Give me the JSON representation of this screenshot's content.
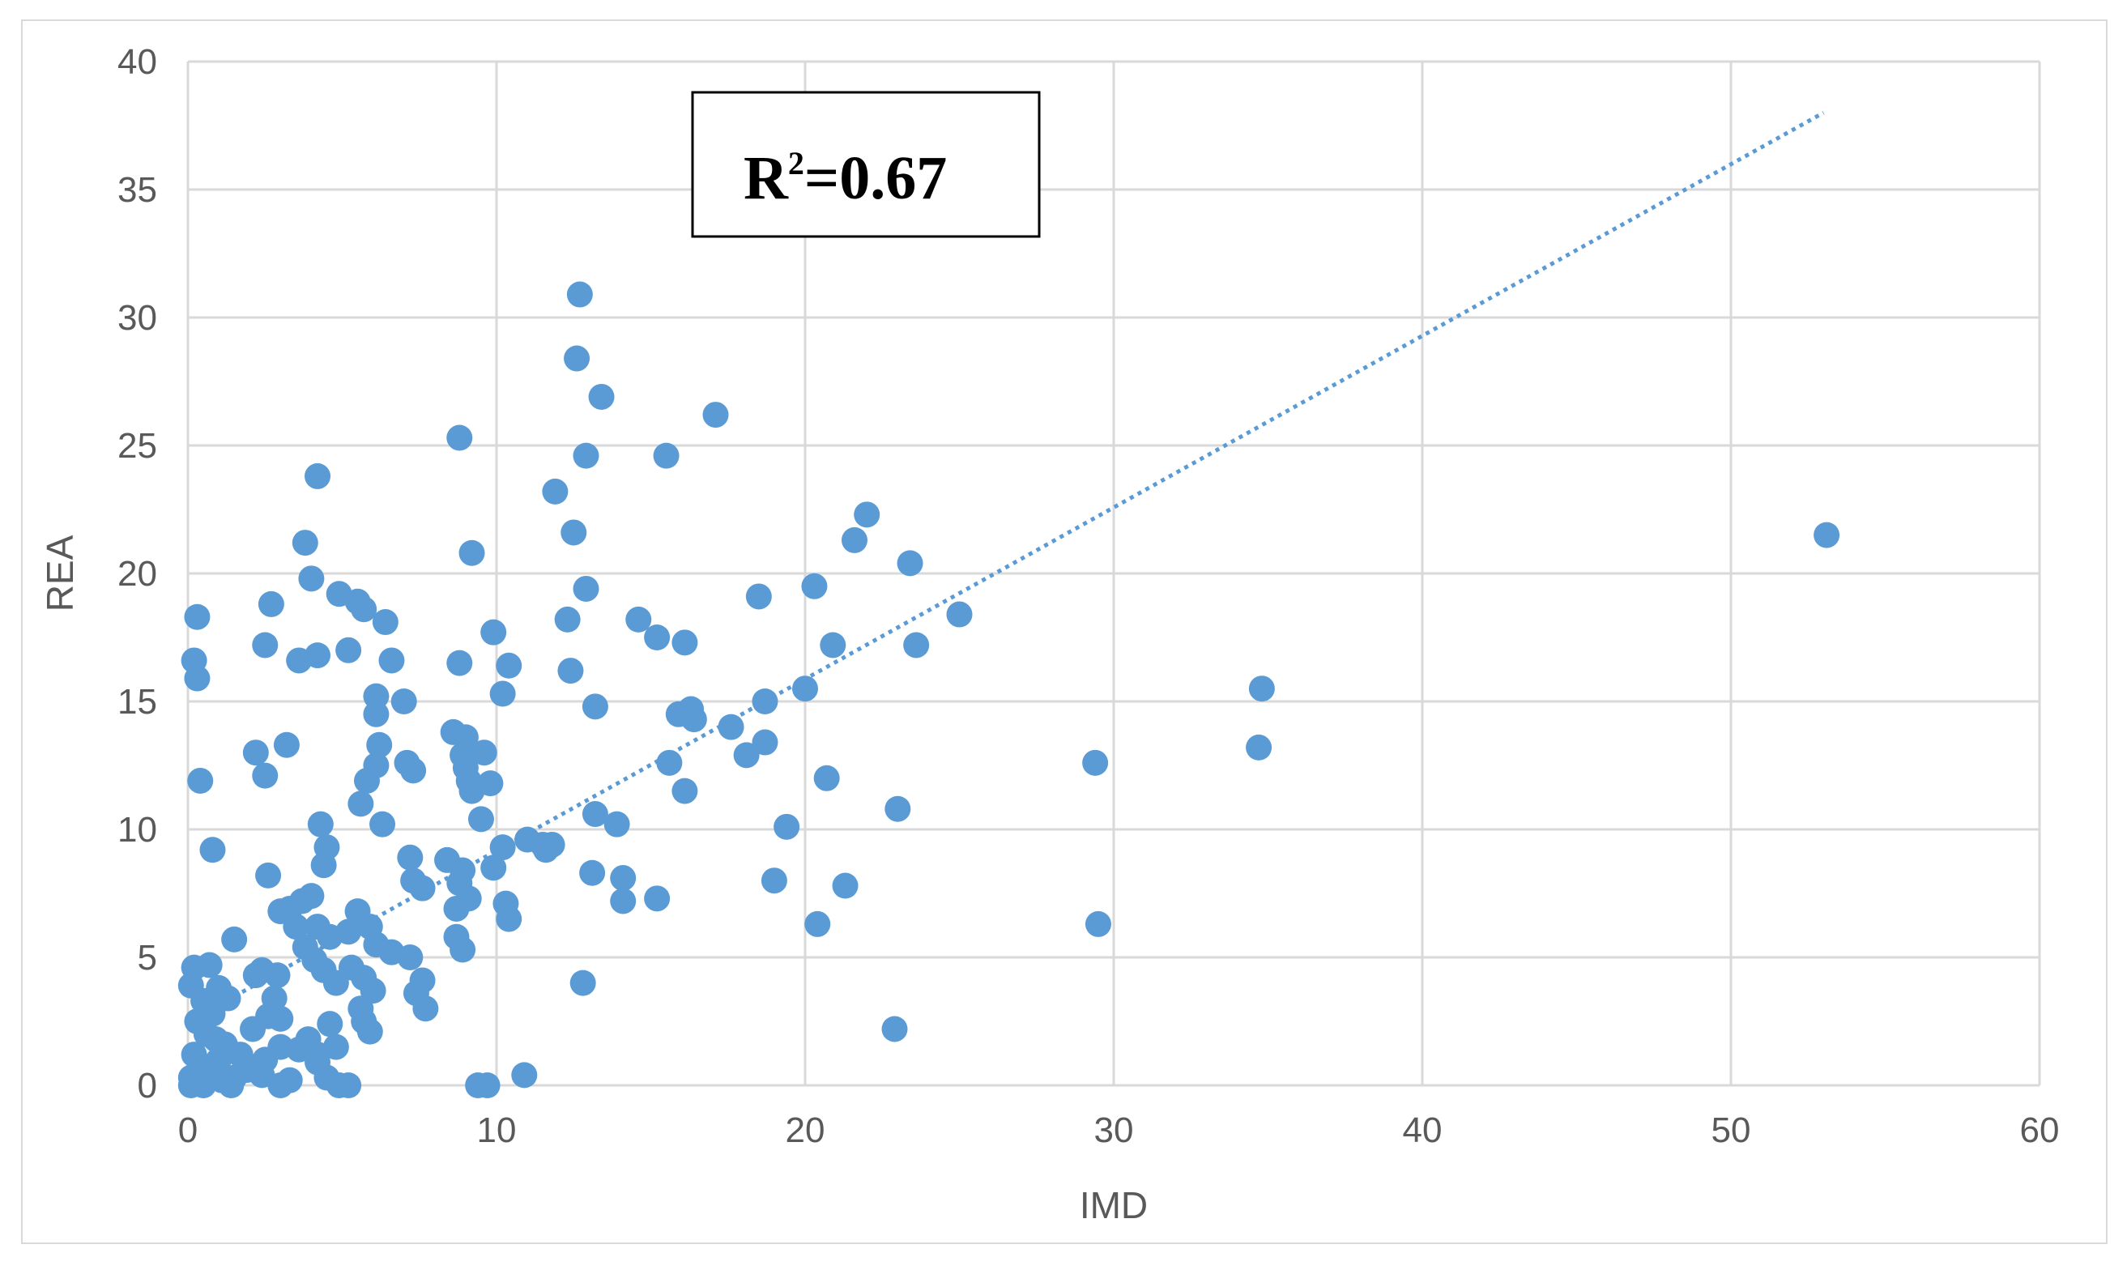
{
  "chart_data": {
    "type": "scatter",
    "xlabel": "IMD",
    "ylabel": "REA",
    "xlim": [
      0,
      60
    ],
    "ylim": [
      0,
      40
    ],
    "x_ticks": [
      "0",
      "10",
      "20",
      "30",
      "40",
      "50",
      "60"
    ],
    "y_ticks": [
      "0",
      "5",
      "10",
      "15",
      "20",
      "25",
      "30",
      "35",
      "40"
    ],
    "grid": true,
    "legend": "none",
    "annotation": {
      "base": "R",
      "sup": "2",
      "rest": "=0.67"
    },
    "colors": {
      "points": "#5b9bd5",
      "trendline": "#5b9bd5",
      "grid": "#d9d9d9",
      "frame": "#d9d9d9"
    },
    "trendline": {
      "style": "dotted",
      "x": [
        0.5,
        53
      ],
      "y": [
        2.8,
        38
      ]
    },
    "points": [
      [
        0.3,
        18.3
      ],
      [
        0.2,
        16.6
      ],
      [
        0.3,
        15.9
      ],
      [
        0.4,
        11.9
      ],
      [
        0.8,
        9.2
      ],
      [
        1.5,
        5.7
      ],
      [
        0.2,
        4.6
      ],
      [
        0.7,
        4.7
      ],
      [
        0.1,
        3.9
      ],
      [
        0.5,
        3.3
      ],
      [
        0.8,
        2.8
      ],
      [
        1.0,
        3.8
      ],
      [
        1.3,
        3.4
      ],
      [
        0.3,
        2.5
      ],
      [
        0.6,
        2.0
      ],
      [
        0.9,
        1.8
      ],
      [
        1.2,
        1.6
      ],
      [
        0.2,
        1.2
      ],
      [
        0.4,
        0.8
      ],
      [
        0.7,
        0.5
      ],
      [
        1.0,
        1.0
      ],
      [
        1.5,
        0.3
      ],
      [
        0.1,
        0.3
      ],
      [
        0.5,
        0.0
      ],
      [
        0.1,
        0.0
      ],
      [
        1.1,
        0.2
      ],
      [
        1.7,
        1.2
      ],
      [
        1.9,
        0.6
      ],
      [
        2.1,
        2.2
      ],
      [
        2.5,
        1.0
      ],
      [
        2.6,
        2.7
      ],
      [
        3.0,
        1.5
      ],
      [
        2.4,
        0.4
      ],
      [
        3.0,
        0.0
      ],
      [
        3.3,
        0.2
      ],
      [
        3.6,
        1.4
      ],
      [
        3.9,
        1.8
      ],
      [
        4.2,
        0.9
      ],
      [
        4.5,
        0.3
      ],
      [
        4.9,
        0.0
      ],
      [
        5.2,
        0.0
      ],
      [
        1.4,
        0.0
      ],
      [
        2.2,
        4.3
      ],
      [
        2.4,
        4.5
      ],
      [
        2.8,
        3.4
      ],
      [
        3.0,
        2.6
      ],
      [
        2.9,
        4.3
      ],
      [
        4.8,
        1.5
      ],
      [
        4.6,
        2.4
      ],
      [
        4.2,
        1.2
      ],
      [
        2.2,
        13.0
      ],
      [
        2.5,
        12.1
      ],
      [
        3.2,
        13.3
      ],
      [
        2.6,
        8.2
      ],
      [
        2.5,
        17.2
      ],
      [
        2.7,
        18.8
      ],
      [
        3.6,
        16.6
      ],
      [
        4.2,
        16.8
      ],
      [
        4.0,
        19.8
      ],
      [
        3.8,
        21.2
      ],
      [
        4.2,
        23.8
      ],
      [
        4.9,
        19.2
      ],
      [
        5.5,
        18.9
      ],
      [
        5.7,
        18.6
      ],
      [
        6.4,
        18.1
      ],
      [
        6.6,
        16.6
      ],
      [
        5.2,
        17.0
      ],
      [
        6.1,
        15.2
      ],
      [
        6.1,
        14.5
      ],
      [
        7.0,
        15.0
      ],
      [
        6.2,
        13.3
      ],
      [
        6.1,
        12.5
      ],
      [
        5.8,
        11.9
      ],
      [
        5.6,
        11.0
      ],
      [
        6.3,
        10.2
      ],
      [
        7.1,
        12.6
      ],
      [
        7.3,
        12.3
      ],
      [
        4.3,
        10.2
      ],
      [
        4.5,
        9.3
      ],
      [
        4.4,
        8.6
      ],
      [
        3.0,
        6.8
      ],
      [
        3.3,
        6.9
      ],
      [
        3.7,
        7.2
      ],
      [
        4.0,
        7.4
      ],
      [
        3.5,
        6.2
      ],
      [
        4.2,
        6.2
      ],
      [
        4.6,
        5.8
      ],
      [
        3.8,
        5.4
      ],
      [
        4.1,
        4.9
      ],
      [
        4.4,
        4.5
      ],
      [
        4.8,
        4.0
      ],
      [
        5.2,
        6.0
      ],
      [
        5.5,
        6.8
      ],
      [
        5.9,
        6.2
      ],
      [
        6.1,
        5.5
      ],
      [
        6.6,
        5.2
      ],
      [
        5.3,
        4.6
      ],
      [
        5.7,
        4.2
      ],
      [
        6.0,
        3.7
      ],
      [
        5.6,
        3.0
      ],
      [
        5.7,
        2.5
      ],
      [
        5.9,
        2.1
      ],
      [
        7.2,
        8.9
      ],
      [
        7.3,
        8.0
      ],
      [
        7.6,
        7.7
      ],
      [
        7.2,
        5.0
      ],
      [
        7.6,
        4.1
      ],
      [
        7.4,
        3.6
      ],
      [
        7.7,
        3.0
      ],
      [
        8.8,
        25.3
      ],
      [
        9.2,
        20.8
      ],
      [
        8.8,
        16.5
      ],
      [
        8.6,
        13.8
      ],
      [
        9.0,
        13.6
      ],
      [
        9.6,
        13.0
      ],
      [
        8.9,
        12.9
      ],
      [
        9.0,
        12.4
      ],
      [
        9.1,
        11.9
      ],
      [
        9.2,
        11.5
      ],
      [
        9.5,
        10.4
      ],
      [
        8.4,
        8.8
      ],
      [
        8.9,
        8.4
      ],
      [
        8.8,
        7.9
      ],
      [
        9.1,
        7.3
      ],
      [
        8.7,
        6.9
      ],
      [
        8.7,
        5.8
      ],
      [
        8.9,
        5.3
      ],
      [
        9.9,
        17.7
      ],
      [
        10.4,
        16.4
      ],
      [
        10.2,
        15.3
      ],
      [
        9.8,
        11.8
      ],
      [
        10.2,
        9.3
      ],
      [
        9.9,
        8.5
      ],
      [
        10.3,
        7.1
      ],
      [
        10.4,
        6.5
      ],
      [
        9.4,
        0.0
      ],
      [
        9.7,
        0.0
      ],
      [
        10.9,
        0.4
      ],
      [
        11.0,
        9.6
      ],
      [
        11.5,
        9.4
      ],
      [
        11.6,
        9.2
      ],
      [
        11.8,
        9.4
      ],
      [
        11.9,
        23.2
      ],
      [
        12.5,
        21.6
      ],
      [
        12.3,
        18.2
      ],
      [
        12.4,
        16.2
      ],
      [
        12.6,
        28.4
      ],
      [
        12.7,
        30.9
      ],
      [
        12.9,
        24.6
      ],
      [
        12.9,
        19.4
      ],
      [
        13.4,
        26.9
      ],
      [
        13.2,
        14.8
      ],
      [
        13.2,
        10.6
      ],
      [
        13.9,
        10.2
      ],
      [
        14.1,
        8.1
      ],
      [
        14.1,
        7.2
      ],
      [
        13.1,
        8.3
      ],
      [
        12.8,
        4.0
      ],
      [
        14.6,
        18.2
      ],
      [
        15.2,
        17.5
      ],
      [
        15.5,
        24.6
      ],
      [
        16.1,
        17.3
      ],
      [
        15.9,
        14.5
      ],
      [
        16.3,
        14.7
      ],
      [
        16.4,
        14.3
      ],
      [
        15.6,
        12.6
      ],
      [
        16.1,
        11.5
      ],
      [
        15.2,
        7.3
      ],
      [
        17.1,
        26.2
      ],
      [
        17.6,
        14.0
      ],
      [
        18.1,
        12.9
      ],
      [
        18.5,
        19.1
      ],
      [
        18.7,
        15.0
      ],
      [
        18.7,
        13.4
      ],
      [
        19.4,
        10.1
      ],
      [
        19.0,
        8.0
      ],
      [
        20.0,
        15.5
      ],
      [
        20.3,
        19.5
      ],
      [
        20.7,
        12.0
      ],
      [
        20.9,
        17.2
      ],
      [
        20.4,
        6.3
      ],
      [
        21.3,
        7.8
      ],
      [
        21.6,
        21.3
      ],
      [
        22.0,
        22.3
      ],
      [
        23.0,
        10.8
      ],
      [
        23.4,
        20.4
      ],
      [
        23.6,
        17.2
      ],
      [
        25.0,
        18.4
      ],
      [
        22.9,
        2.2
      ],
      [
        29.4,
        12.6
      ],
      [
        29.5,
        6.3
      ],
      [
        34.7,
        13.2
      ],
      [
        34.8,
        15.5
      ],
      [
        53.1,
        21.5
      ]
    ]
  }
}
